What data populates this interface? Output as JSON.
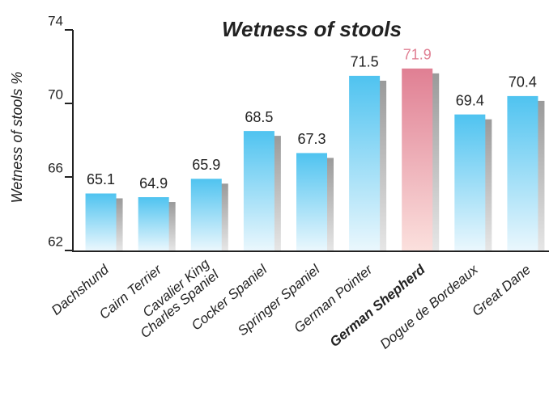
{
  "chart_data": {
    "type": "bar",
    "title": "Wetness of stools",
    "y_label": "Wetness of stools %",
    "categories": [
      "Dachshund",
      "Cairn Terrier",
      "Cavalier King\nCharles Spaniel",
      "Cocker Spaniel",
      "Springer Spaniel",
      "German Pointer",
      "German Shepherd",
      "Dogue de Bordeaux",
      "Great Dane"
    ],
    "values": [
      65.1,
      64.9,
      65.9,
      68.5,
      67.3,
      71.5,
      71.9,
      69.4,
      70.4
    ],
    "colors": [
      "#4fc3f0",
      "#4fc3f0",
      "#4fc3f0",
      "#4fc3f0",
      "#4fc3f0",
      "#4fc3f0",
      "#e07f93",
      "#4fc3f0",
      "#4fc3f0"
    ],
    "ylim": [
      62,
      74
    ],
    "yticks": [
      62,
      66,
      70,
      74
    ],
    "grid": false
  }
}
